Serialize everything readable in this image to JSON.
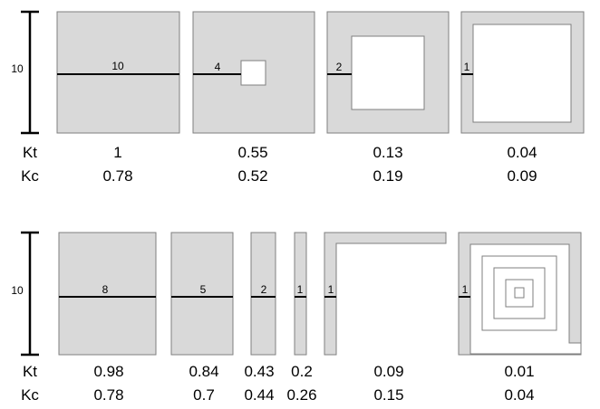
{
  "scale_label": "10",
  "row_labels": {
    "kt": "Kt",
    "kc": "Kc"
  },
  "top_row": [
    {
      "label": "10",
      "kt": "1",
      "kc": "0.78"
    },
    {
      "label": "4",
      "kt": "0.55",
      "kc": "0.52"
    },
    {
      "label": "2",
      "kt": "0.13",
      "kc": "0.19"
    },
    {
      "label": "1",
      "kt": "0.04",
      "kc": "0.09"
    }
  ],
  "bottom_row": [
    {
      "label": "8",
      "kt": "0.98",
      "kc": "0.78"
    },
    {
      "label": "5",
      "kt": "0.84",
      "kc": "0.7"
    },
    {
      "label": "2",
      "kt": "0.43",
      "kc": "0.44"
    },
    {
      "label": "1",
      "kt": "0.2",
      "kc": "0.26"
    },
    {
      "label": "1",
      "kt": "0.09",
      "kc": "0.15"
    },
    {
      "label": "1",
      "kt": "0.01",
      "kc": "0.04"
    }
  ]
}
